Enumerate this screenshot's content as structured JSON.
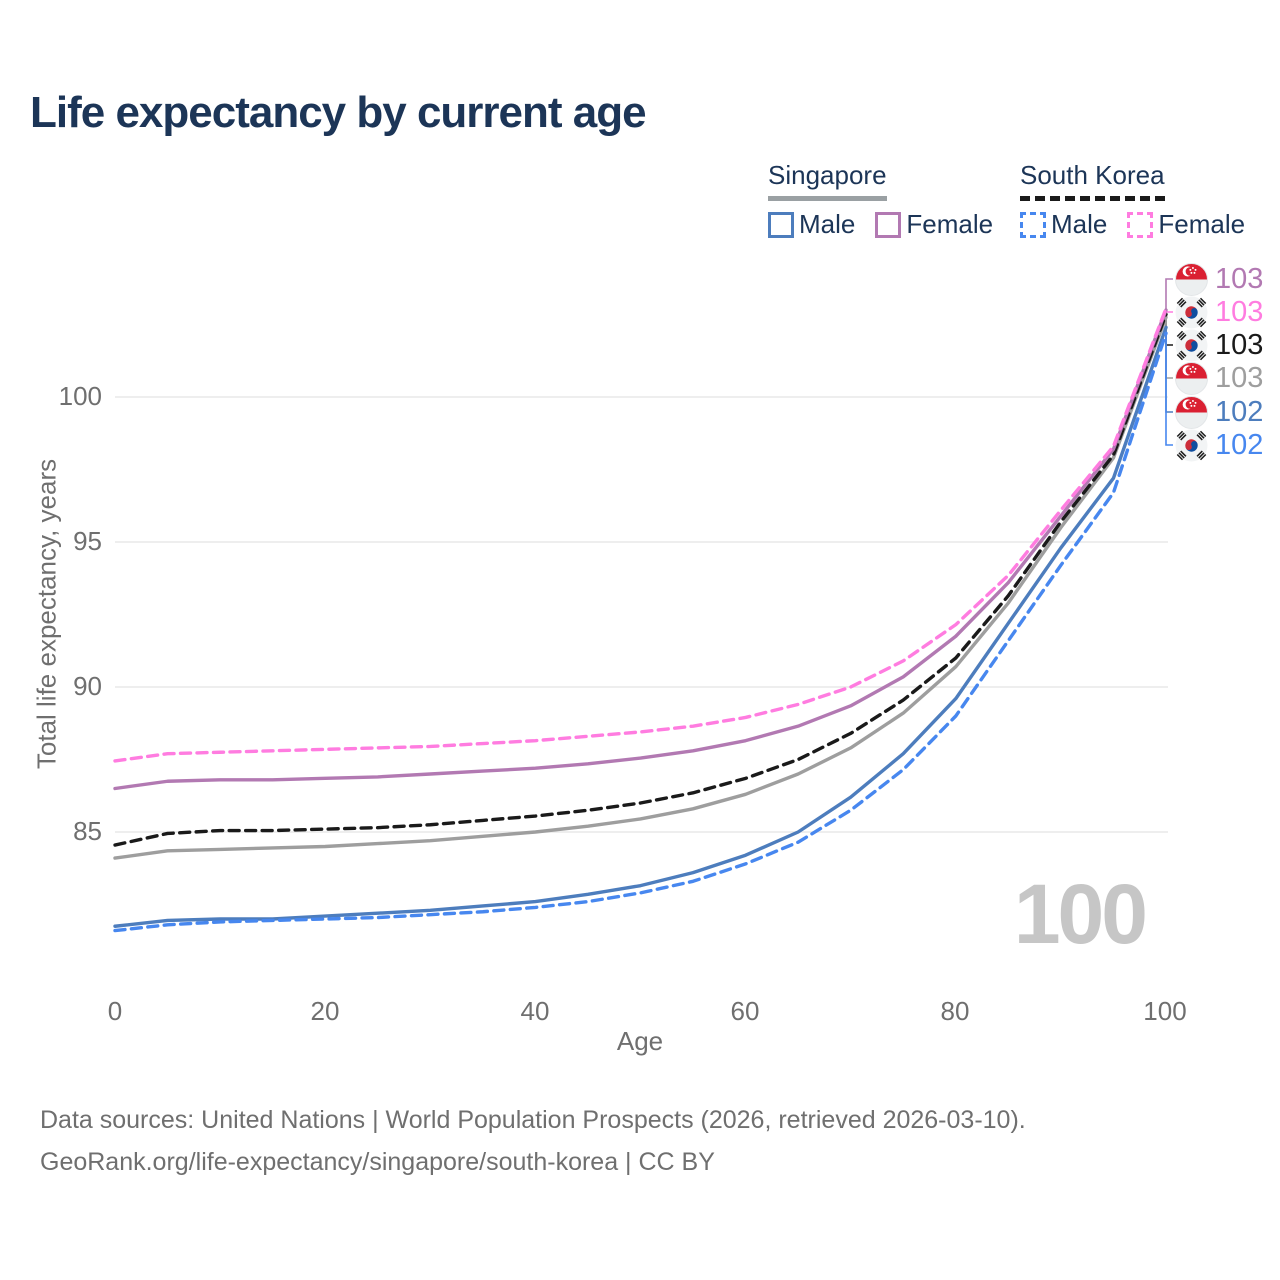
{
  "title": "Life expectancy by current age",
  "legend": {
    "groups": [
      {
        "country": "Singapore",
        "line_style": "solid",
        "underline_color": "#9aa0a3",
        "items": [
          {
            "label": "Male",
            "color": "#4d7dbd"
          },
          {
            "label": "Female",
            "color": "#b279b2"
          }
        ]
      },
      {
        "country": "South Korea",
        "line_style": "dashed",
        "underline_color": "#1a1a1a",
        "items": [
          {
            "label": "Male",
            "color": "#4787ef"
          },
          {
            "label": "Female",
            "color": "#ff7ce0"
          }
        ]
      }
    ]
  },
  "chart_data": {
    "type": "line",
    "title": "Life expectancy by current age",
    "xlabel": "Age",
    "ylabel": "Total life expectancy, years",
    "xlim": [
      0,
      100
    ],
    "ylim": [
      81,
      103.5
    ],
    "xticks": [
      0,
      20,
      40,
      60,
      80,
      100
    ],
    "yticks": [
      85,
      90,
      95,
      100
    ],
    "grid": "horizontal",
    "legend_position": "top-right",
    "x": [
      0,
      5,
      10,
      15,
      20,
      25,
      30,
      35,
      40,
      45,
      50,
      55,
      60,
      65,
      70,
      75,
      80,
      85,
      90,
      95,
      100
    ],
    "series": [
      {
        "id": "singapore-all",
        "name": "Singapore — All",
        "country": "Singapore",
        "sex": "All",
        "style": "solid",
        "color": "#9e9e9e",
        "values": [
          84.1,
          84.35,
          84.4,
          84.45,
          84.5,
          84.6,
          84.7,
          84.85,
          85.0,
          85.2,
          85.45,
          85.8,
          86.3,
          87.0,
          87.9,
          89.1,
          90.7,
          92.9,
          95.5,
          97.9,
          102.75
        ]
      },
      {
        "id": "south-korea-all",
        "name": "South Korea — All",
        "country": "South Korea",
        "sex": "All",
        "style": "dashed",
        "color": "#1a1a1a",
        "values": [
          84.55,
          84.95,
          85.05,
          85.05,
          85.1,
          85.15,
          85.25,
          85.4,
          85.55,
          85.75,
          86.0,
          86.35,
          86.85,
          87.5,
          88.4,
          89.55,
          91.0,
          93.15,
          95.7,
          98.0,
          102.85
        ]
      },
      {
        "id": "singapore-female",
        "name": "Singapore — Female",
        "country": "Singapore",
        "sex": "Female",
        "style": "solid",
        "color": "#b279b2",
        "values": [
          86.5,
          86.75,
          86.8,
          86.8,
          86.85,
          86.9,
          87.0,
          87.1,
          87.2,
          87.35,
          87.55,
          87.8,
          88.15,
          88.65,
          89.35,
          90.35,
          91.75,
          93.6,
          95.9,
          98.2,
          103.0
        ]
      },
      {
        "id": "south-korea-female",
        "name": "South Korea — Female",
        "country": "South Korea",
        "sex": "Female",
        "style": "dashed",
        "color": "#ff7ce0",
        "values": [
          87.45,
          87.7,
          87.75,
          87.8,
          87.85,
          87.9,
          87.95,
          88.05,
          88.15,
          88.3,
          88.45,
          88.65,
          88.95,
          89.4,
          90.0,
          90.9,
          92.15,
          93.85,
          96.1,
          98.3,
          103.05
        ]
      },
      {
        "id": "singapore-male",
        "name": "Singapore — Male",
        "country": "Singapore",
        "sex": "Male",
        "style": "solid",
        "color": "#4d7dbd",
        "values": [
          81.75,
          81.95,
          82.0,
          82.0,
          82.1,
          82.2,
          82.3,
          82.45,
          82.6,
          82.85,
          83.15,
          83.6,
          84.2,
          85.0,
          86.2,
          87.7,
          89.6,
          92.2,
          94.8,
          97.2,
          102.4
        ]
      },
      {
        "id": "south-korea-male",
        "name": "South Korea — Male",
        "country": "South Korea",
        "sex": "Male",
        "style": "dashed",
        "color": "#4787ef",
        "values": [
          81.6,
          81.8,
          81.9,
          81.95,
          82.0,
          82.05,
          82.15,
          82.25,
          82.4,
          82.6,
          82.9,
          83.3,
          83.9,
          84.65,
          85.75,
          87.15,
          89.0,
          91.6,
          94.2,
          96.7,
          102.2
        ]
      }
    ]
  },
  "end_labels": [
    {
      "value": "103",
      "series": "Singapore — Female",
      "series_index": 2,
      "flag": "singapore",
      "color": "#b279b2"
    },
    {
      "value": "103",
      "series": "South Korea — Female",
      "series_index": 3,
      "flag": "south-korea",
      "color": "#ff7ce0"
    },
    {
      "value": "103",
      "series": "South Korea — All",
      "series_index": 1,
      "flag": "south-korea",
      "color": "#1a1a1a"
    },
    {
      "value": "103",
      "series": "Singapore — All",
      "series_index": 0,
      "flag": "singapore",
      "color": "#9e9e9e"
    },
    {
      "value": "102",
      "series": "Singapore — Male",
      "series_index": 4,
      "flag": "singapore",
      "color": "#4d7dbd"
    },
    {
      "value": "102",
      "series": "South Korea — Male",
      "series_index": 5,
      "flag": "south-korea",
      "color": "#4787ef"
    }
  ],
  "watermark": "100",
  "footer": {
    "line1": "Data sources: United Nations | World Population Prospects (2026, retrieved 2026-03-10).",
    "line2": "GeoRank.org/life-expectancy/singapore/south-korea | CC BY"
  }
}
